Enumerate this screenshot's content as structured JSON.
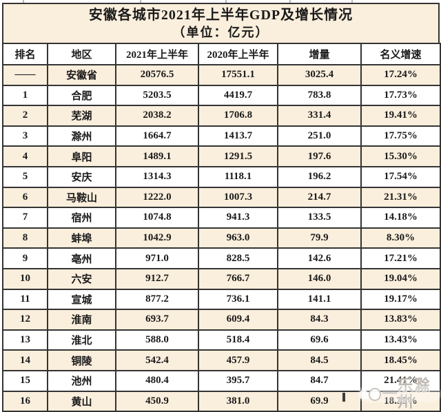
{
  "title": {
    "line1": "安徽各城市2021年上半年GDP及增长情况",
    "line2": "（单位：亿元）"
  },
  "chart_data": {
    "type": "table",
    "title": "安徽各城市2021年上半年GDP及增长情况（单位：亿元）",
    "columns": [
      "排名",
      "地区",
      "2021年上半年",
      "2020年上半年",
      "增量",
      "名义增速"
    ],
    "rows": [
      [
        "——",
        "安徽省",
        "20576.5",
        "17551.1",
        "3025.4",
        "17.24%"
      ],
      [
        "1",
        "合肥",
        "5203.5",
        "4419.7",
        "783.8",
        "17.73%"
      ],
      [
        "2",
        "芜湖",
        "2038.2",
        "1706.8",
        "331.4",
        "19.41%"
      ],
      [
        "3",
        "滁州",
        "1664.7",
        "1413.7",
        "251.0",
        "17.75%"
      ],
      [
        "4",
        "阜阳",
        "1489.1",
        "1291.5",
        "197.6",
        "15.30%"
      ],
      [
        "5",
        "安庆",
        "1314.3",
        "1118.1",
        "196.2",
        "17.54%"
      ],
      [
        "6",
        "马鞍山",
        "1222.0",
        "1007.3",
        "214.7",
        "21.31%"
      ],
      [
        "7",
        "宿州",
        "1074.8",
        "941.3",
        "133.5",
        "14.18%"
      ],
      [
        "8",
        "蚌埠",
        "1042.9",
        "963.0",
        "79.9",
        "8.30%"
      ],
      [
        "9",
        "亳州",
        "971.0",
        "828.5",
        "142.6",
        "17.21%"
      ],
      [
        "10",
        "六安",
        "912.7",
        "766.7",
        "146.0",
        "19.04%"
      ],
      [
        "11",
        "宣城",
        "877.2",
        "736.1",
        "141.1",
        "19.17%"
      ],
      [
        "12",
        "淮南",
        "693.7",
        "609.4",
        "84.3",
        "13.83%"
      ],
      [
        "13",
        "淮北",
        "588.0",
        "518.4",
        "69.6",
        "13.43%"
      ],
      [
        "14",
        "铜陵",
        "542.4",
        "457.9",
        "84.5",
        "18.45%"
      ],
      [
        "15",
        "池州",
        "480.4",
        "395.7",
        "84.7",
        "21.41%"
      ],
      [
        "16",
        "黄山",
        "450.9",
        "381.0",
        "69.9",
        "18.35%"
      ]
    ]
  },
  "watermark": {
    "dash": "一",
    "text": "乐滁州"
  },
  "colors": {
    "cream_row": "#faeedc",
    "border": "#333333",
    "text": "#1a1a1a",
    "watermark_gray": "#968c80"
  }
}
